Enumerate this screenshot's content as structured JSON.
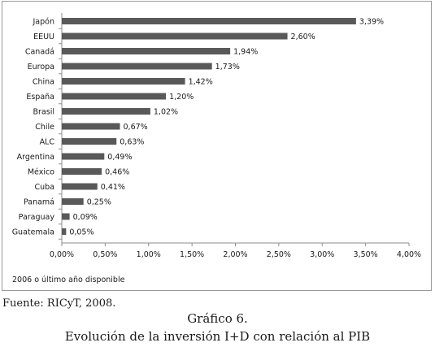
{
  "chart_data": {
    "type": "bar",
    "orientation": "horizontal",
    "categories": [
      "Japón",
      "EEUU",
      "Canadá",
      "Europa",
      "China",
      "España",
      "Brasil",
      "Chile",
      "ALC",
      "Argentina",
      "México",
      "Cuba",
      "Panamá",
      "Paraguay",
      "Guatemala"
    ],
    "values": [
      3.39,
      2.6,
      1.94,
      1.73,
      1.42,
      1.2,
      1.02,
      0.67,
      0.63,
      0.49,
      0.46,
      0.41,
      0.25,
      0.09,
      0.05
    ],
    "value_labels": [
      "3,39%",
      "2,60%",
      "1,94%",
      "1,73%",
      "1,42%",
      "1,20%",
      "1,02%",
      "0,67%",
      "0,63%",
      "0,49%",
      "0,46%",
      "0,41%",
      "0,25%",
      "0,09%",
      "0,05%"
    ],
    "xlim": [
      0,
      4
    ],
    "xticks": [
      0,
      0.5,
      1,
      1.5,
      2,
      2.5,
      3,
      3.5,
      4
    ],
    "xtick_labels": [
      "0,00%",
      "0,50%",
      "1,00%",
      "1,50%",
      "2,00%",
      "2,50%",
      "3,00%",
      "3,50%",
      "4,00%"
    ],
    "grid": false,
    "bar_color": "#595959",
    "note": "2006 o último año disponible"
  },
  "source_label": "Fuente:",
  "source_text": "RICyT, 2008.",
  "caption_title": "Gráfico 6.",
  "caption_subtitle": "Evolución de la inversión I+D con relación al PIB"
}
